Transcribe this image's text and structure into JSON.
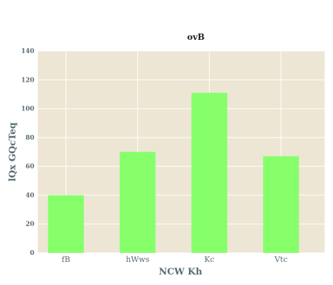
{
  "chart_data": {
    "type": "bar",
    "title": "ovB",
    "xlabel": "NCW Kh",
    "ylabel": "lQx GQcTeq",
    "categories": [
      "fB",
      "hWws",
      "Kc",
      "Vtc"
    ],
    "values": [
      40,
      70,
      111,
      67
    ],
    "ylim": [
      0,
      140
    ],
    "yticks": [
      0,
      20,
      40,
      60,
      80,
      100,
      120,
      140
    ],
    "grid": true,
    "colors": {
      "bar": "#86ff6b",
      "plot_bg": "#ede6d4",
      "grid": "#ffffff",
      "text": "#5a6b74"
    }
  }
}
